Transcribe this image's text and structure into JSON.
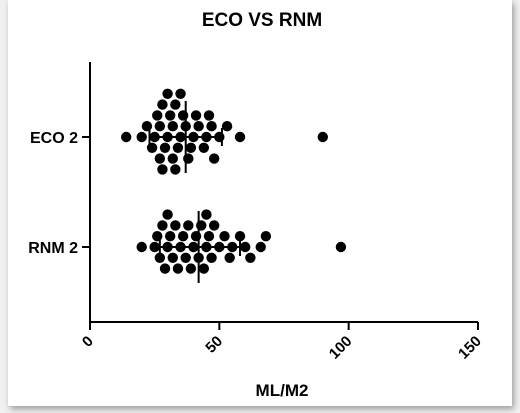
{
  "chart_data": {
    "type": "scatter",
    "title": "ECO VS RNM",
    "xlabel": "ML/M2",
    "ylabel": "",
    "xlim": [
      0,
      150
    ],
    "xticks": [
      0,
      50,
      100,
      150
    ],
    "categories": [
      "ECO 2",
      "RNM 2"
    ],
    "marker_color": "#000000",
    "series": [
      {
        "name": "ECO 2",
        "values": [
          14,
          20,
          22,
          24,
          25,
          26,
          27,
          27,
          28,
          28,
          29,
          30,
          30,
          31,
          32,
          32,
          33,
          33,
          34,
          35,
          35,
          36,
          37,
          38,
          39,
          40,
          41,
          42,
          44,
          45,
          46,
          47,
          48,
          50,
          53,
          58,
          90
        ],
        "mean": 37,
        "sd_low": 23,
        "sd_high": 51
      },
      {
        "name": "RNM 2",
        "values": [
          20,
          25,
          26,
          27,
          28,
          29,
          30,
          30,
          31,
          32,
          33,
          34,
          35,
          36,
          37,
          38,
          39,
          40,
          41,
          42,
          43,
          44,
          45,
          45,
          46,
          47,
          48,
          50,
          52,
          54,
          55,
          58,
          60,
          62,
          66,
          68,
          97
        ],
        "mean": 42,
        "sd_low": 27,
        "sd_high": 58
      }
    ]
  }
}
